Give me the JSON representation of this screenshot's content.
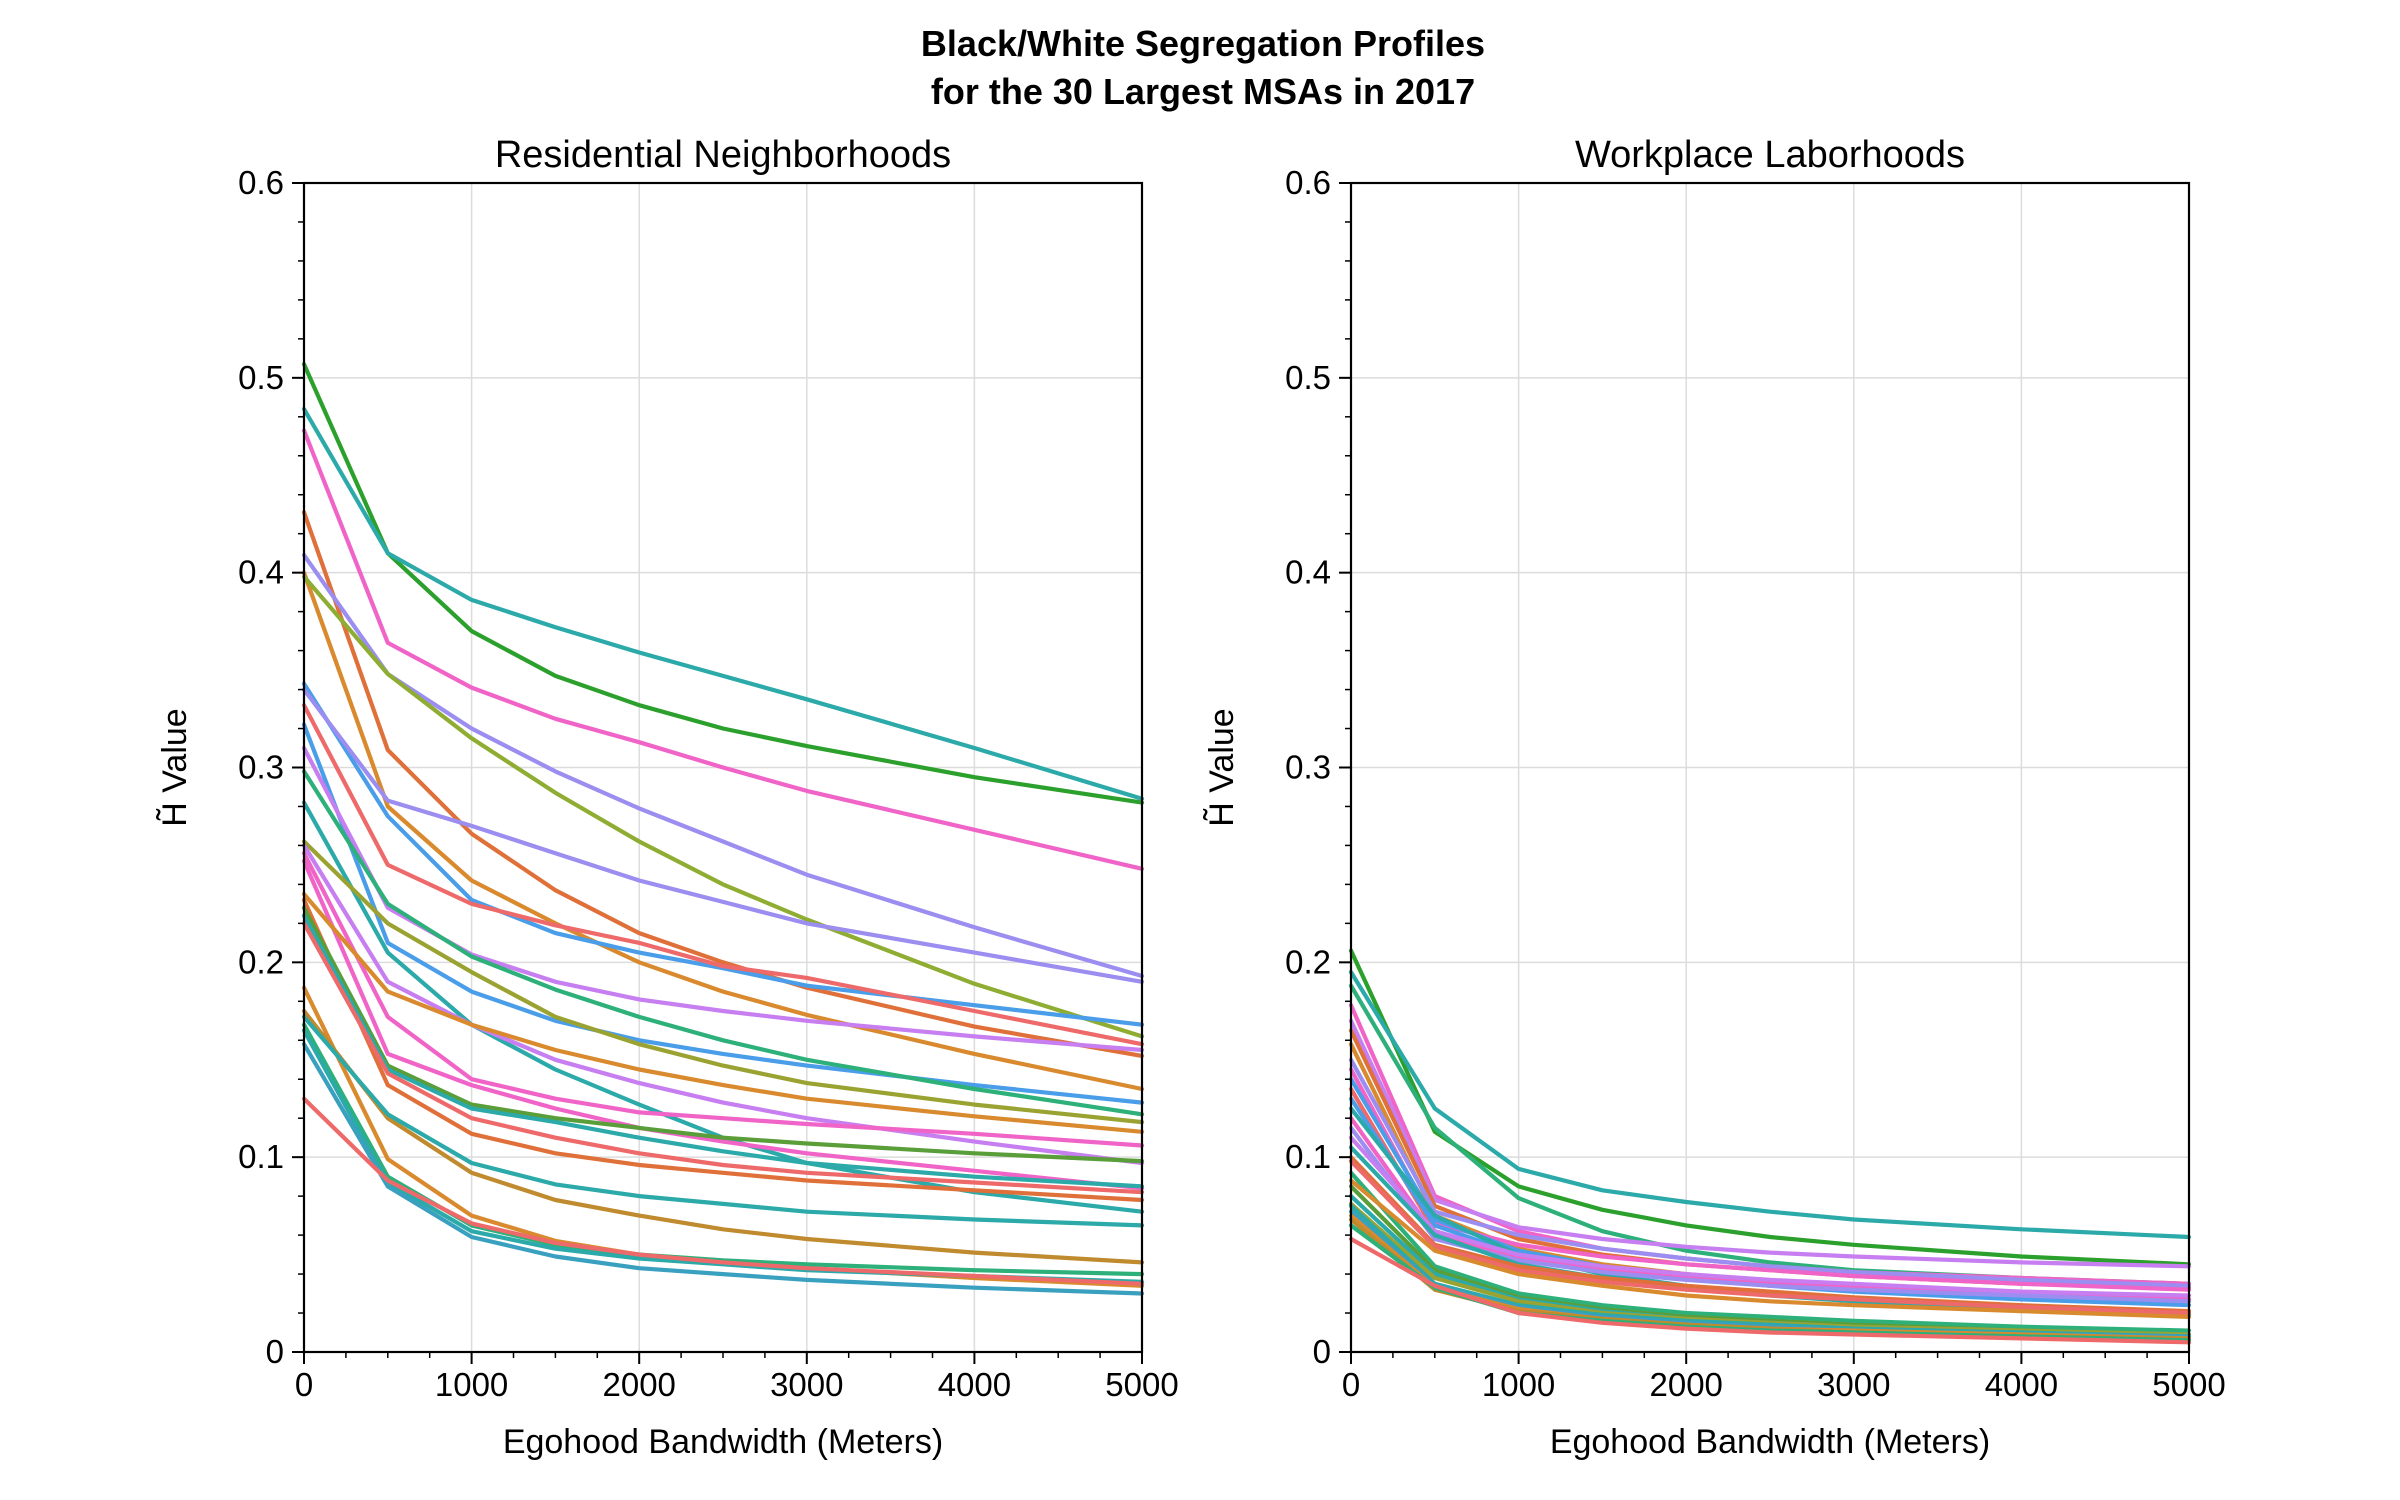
{
  "figure": {
    "title_line1": "Black/White Segregation Profiles",
    "title_line2": "for the 30 Largest MSAs in 2017"
  },
  "chart_data": [
    {
      "type": "line",
      "title": "Residential Neighborhoods",
      "xlabel": "Egohood Bandwidth (Meters)",
      "ylabel": "H̃ Value",
      "xlim": [
        0,
        5000
      ],
      "ylim": [
        0,
        0.6
      ],
      "xticks": [
        0,
        1000,
        2000,
        3000,
        4000,
        5000
      ],
      "yticks": [
        0,
        0.1,
        0.2,
        0.3,
        0.4,
        0.5,
        0.6
      ],
      "xtick_labels": [
        "0",
        "1000",
        "2000",
        "3000",
        "4000",
        "5000"
      ],
      "ytick_labels": [
        "0",
        "0.1",
        "0.2",
        "0.3",
        "0.4",
        "0.5",
        "0.6"
      ],
      "grid": true,
      "legend": "none",
      "x": [
        0,
        500,
        1000,
        1500,
        2000,
        2500,
        3000,
        4000,
        5000
      ],
      "series": [
        {
          "color": "#2ca02c",
          "values": [
            0.507,
            0.41,
            0.37,
            0.347,
            0.332,
            0.32,
            0.311,
            0.295,
            0.282
          ]
        },
        {
          "color": "#2ca9a9",
          "values": [
            0.484,
            0.41,
            0.386,
            0.372,
            0.359,
            0.347,
            0.335,
            0.31,
            0.284
          ]
        },
        {
          "color": "#f064c8",
          "values": [
            0.473,
            0.364,
            0.341,
            0.325,
            0.313,
            0.3,
            0.288,
            0.268,
            0.248
          ]
        },
        {
          "color": "#e0703a",
          "values": [
            0.431,
            0.309,
            0.266,
            0.237,
            0.215,
            0.2,
            0.187,
            0.167,
            0.152
          ]
        },
        {
          "color": "#d98a2e",
          "values": [
            0.4,
            0.28,
            0.242,
            0.22,
            0.2,
            0.185,
            0.173,
            0.153,
            0.135
          ]
        },
        {
          "color": "#9b8ef0",
          "values": [
            0.409,
            0.348,
            0.32,
            0.298,
            0.279,
            0.262,
            0.245,
            0.218,
            0.193
          ]
        },
        {
          "color": "#8fad32",
          "values": [
            0.398,
            0.348,
            0.315,
            0.287,
            0.262,
            0.24,
            0.222,
            0.189,
            0.162
          ]
        },
        {
          "color": "#4a9de8",
          "values": [
            0.343,
            0.275,
            0.232,
            0.215,
            0.205,
            0.197,
            0.188,
            0.178,
            0.168
          ]
        },
        {
          "color": "#9b8ef0",
          "values": [
            0.34,
            0.283,
            0.27,
            0.256,
            0.242,
            0.231,
            0.22,
            0.205,
            0.19
          ]
        },
        {
          "color": "#ee6a6a",
          "values": [
            0.332,
            0.25,
            0.23,
            0.219,
            0.21,
            0.198,
            0.192,
            0.175,
            0.158
          ]
        },
        {
          "color": "#4a9de8",
          "values": [
            0.322,
            0.21,
            0.185,
            0.17,
            0.16,
            0.153,
            0.147,
            0.137,
            0.128
          ]
        },
        {
          "color": "#c77ef0",
          "values": [
            0.31,
            0.228,
            0.204,
            0.19,
            0.181,
            0.175,
            0.17,
            0.162,
            0.155
          ]
        },
        {
          "color": "#2db07a",
          "values": [
            0.298,
            0.23,
            0.203,
            0.186,
            0.172,
            0.16,
            0.15,
            0.135,
            0.122
          ]
        },
        {
          "color": "#2ca9a9",
          "values": [
            0.282,
            0.205,
            0.168,
            0.145,
            0.127,
            0.11,
            0.097,
            0.082,
            0.072
          ]
        },
        {
          "color": "#9aa332",
          "values": [
            0.262,
            0.22,
            0.195,
            0.172,
            0.158,
            0.147,
            0.138,
            0.127,
            0.118
          ]
        },
        {
          "color": "#c77ef0",
          "values": [
            0.26,
            0.19,
            0.168,
            0.15,
            0.138,
            0.128,
            0.12,
            0.108,
            0.097
          ]
        },
        {
          "color": "#f064c8",
          "values": [
            0.256,
            0.172,
            0.14,
            0.13,
            0.123,
            0.12,
            0.117,
            0.112,
            0.106
          ]
        },
        {
          "color": "#f064c8",
          "values": [
            0.252,
            0.153,
            0.137,
            0.125,
            0.115,
            0.108,
            0.102,
            0.093,
            0.084
          ]
        },
        {
          "color": "#d98a2e",
          "values": [
            0.235,
            0.185,
            0.168,
            0.155,
            0.145,
            0.137,
            0.13,
            0.121,
            0.113
          ]
        },
        {
          "color": "#e0703a",
          "values": [
            0.232,
            0.137,
            0.112,
            0.102,
            0.096,
            0.092,
            0.088,
            0.083,
            0.078
          ]
        },
        {
          "color": "#5a9e3a",
          "values": [
            0.228,
            0.147,
            0.127,
            0.12,
            0.115,
            0.11,
            0.107,
            0.102,
            0.098
          ]
        },
        {
          "color": "#2ca9a9",
          "values": [
            0.224,
            0.145,
            0.125,
            0.118,
            0.11,
            0.103,
            0.097,
            0.09,
            0.085
          ]
        },
        {
          "color": "#ee6a6a",
          "values": [
            0.22,
            0.143,
            0.12,
            0.11,
            0.102,
            0.096,
            0.092,
            0.087,
            0.082
          ]
        },
        {
          "color": "#d98a2e",
          "values": [
            0.187,
            0.099,
            0.07,
            0.057,
            0.05,
            0.046,
            0.043,
            0.038,
            0.034
          ]
        },
        {
          "color": "#c08a2e",
          "values": [
            0.175,
            0.12,
            0.092,
            0.078,
            0.07,
            0.063,
            0.058,
            0.051,
            0.046
          ]
        },
        {
          "color": "#2ca9a9",
          "values": [
            0.172,
            0.122,
            0.097,
            0.086,
            0.08,
            0.076,
            0.072,
            0.068,
            0.065
          ]
        },
        {
          "color": "#2db07a",
          "values": [
            0.168,
            0.09,
            0.065,
            0.055,
            0.05,
            0.047,
            0.045,
            0.042,
            0.04
          ]
        },
        {
          "color": "#2ca9a9",
          "values": [
            0.165,
            0.087,
            0.062,
            0.053,
            0.048,
            0.045,
            0.042,
            0.039,
            0.036
          ]
        },
        {
          "color": "#3aa0c0",
          "values": [
            0.158,
            0.085,
            0.059,
            0.049,
            0.043,
            0.04,
            0.037,
            0.033,
            0.03
          ]
        },
        {
          "color": "#ee6a6a",
          "values": [
            0.13,
            0.088,
            0.066,
            0.056,
            0.05,
            0.046,
            0.043,
            0.039,
            0.035
          ]
        }
      ]
    },
    {
      "type": "line",
      "title": "Workplace Laborhoods",
      "xlabel": "Egohood Bandwidth (Meters)",
      "ylabel": "H̃ Value",
      "xlim": [
        0,
        5000
      ],
      "ylim": [
        0,
        0.6
      ],
      "xticks": [
        0,
        1000,
        2000,
        3000,
        4000,
        5000
      ],
      "yticks": [
        0,
        0.1,
        0.2,
        0.3,
        0.4,
        0.5,
        0.6
      ],
      "xtick_labels": [
        "0",
        "1000",
        "2000",
        "3000",
        "4000",
        "5000"
      ],
      "ytick_labels": [
        "0",
        "0.1",
        "0.2",
        "0.3",
        "0.4",
        "0.5",
        "0.6"
      ],
      "grid": true,
      "legend": "none",
      "x": [
        0,
        500,
        1000,
        1500,
        2000,
        2500,
        3000,
        4000,
        5000
      ],
      "series": [
        {
          "color": "#2ca02c",
          "values": [
            0.206,
            0.113,
            0.085,
            0.073,
            0.065,
            0.059,
            0.055,
            0.049,
            0.045
          ]
        },
        {
          "color": "#2ca9a9",
          "values": [
            0.195,
            0.125,
            0.094,
            0.083,
            0.077,
            0.072,
            0.068,
            0.063,
            0.059
          ]
        },
        {
          "color": "#2db07a",
          "values": [
            0.188,
            0.115,
            0.079,
            0.062,
            0.052,
            0.046,
            0.042,
            0.038,
            0.035
          ]
        },
        {
          "color": "#f064c8",
          "values": [
            0.178,
            0.08,
            0.062,
            0.053,
            0.048,
            0.044,
            0.041,
            0.038,
            0.035
          ]
        },
        {
          "color": "#c77ef0",
          "values": [
            0.17,
            0.078,
            0.064,
            0.058,
            0.054,
            0.051,
            0.049,
            0.046,
            0.044
          ]
        },
        {
          "color": "#e0703a",
          "values": [
            0.165,
            0.075,
            0.058,
            0.05,
            0.045,
            0.042,
            0.039,
            0.035,
            0.033
          ]
        },
        {
          "color": "#d98a2e",
          "values": [
            0.158,
            0.07,
            0.053,
            0.045,
            0.04,
            0.036,
            0.034,
            0.03,
            0.027
          ]
        },
        {
          "color": "#9b8ef0",
          "values": [
            0.15,
            0.072,
            0.06,
            0.053,
            0.048,
            0.044,
            0.041,
            0.037,
            0.034
          ]
        },
        {
          "color": "#f064c8",
          "values": [
            0.145,
            0.066,
            0.055,
            0.049,
            0.045,
            0.042,
            0.039,
            0.035,
            0.032
          ]
        },
        {
          "color": "#4a9de8",
          "values": [
            0.14,
            0.068,
            0.052,
            0.044,
            0.039,
            0.036,
            0.033,
            0.03,
            0.027
          ]
        },
        {
          "color": "#ee6a6a",
          "values": [
            0.135,
            0.062,
            0.049,
            0.042,
            0.038,
            0.035,
            0.033,
            0.029,
            0.026
          ]
        },
        {
          "color": "#4a9de8",
          "values": [
            0.13,
            0.065,
            0.05,
            0.043,
            0.038,
            0.034,
            0.031,
            0.027,
            0.024
          ]
        },
        {
          "color": "#2ca9a9",
          "values": [
            0.125,
            0.07,
            0.05,
            0.04,
            0.034,
            0.03,
            0.027,
            0.022,
            0.019
          ]
        },
        {
          "color": "#f064c8",
          "values": [
            0.12,
            0.06,
            0.048,
            0.042,
            0.038,
            0.035,
            0.033,
            0.03,
            0.027
          ]
        },
        {
          "color": "#9b8ef0",
          "values": [
            0.115,
            0.058,
            0.047,
            0.041,
            0.037,
            0.034,
            0.032,
            0.029,
            0.026
          ]
        },
        {
          "color": "#c77ef0",
          "values": [
            0.11,
            0.062,
            0.05,
            0.044,
            0.04,
            0.037,
            0.035,
            0.031,
            0.029
          ]
        },
        {
          "color": "#2ca9a9",
          "values": [
            0.105,
            0.06,
            0.045,
            0.038,
            0.033,
            0.029,
            0.026,
            0.022,
            0.019
          ]
        },
        {
          "color": "#e0703a",
          "values": [
            0.1,
            0.055,
            0.044,
            0.038,
            0.034,
            0.031,
            0.028,
            0.024,
            0.021
          ]
        },
        {
          "color": "#ee6a6a",
          "values": [
            0.098,
            0.054,
            0.042,
            0.036,
            0.032,
            0.029,
            0.027,
            0.023,
            0.02
          ]
        },
        {
          "color": "#2db07a",
          "values": [
            0.092,
            0.044,
            0.03,
            0.024,
            0.02,
            0.018,
            0.016,
            0.013,
            0.011
          ]
        },
        {
          "color": "#d98a2e",
          "values": [
            0.088,
            0.052,
            0.04,
            0.034,
            0.029,
            0.026,
            0.024,
            0.021,
            0.018
          ]
        },
        {
          "color": "#5a9e3a",
          "values": [
            0.085,
            0.042,
            0.028,
            0.022,
            0.018,
            0.016,
            0.014,
            0.011,
            0.009
          ]
        },
        {
          "color": "#2ca9a9",
          "values": [
            0.08,
            0.04,
            0.027,
            0.021,
            0.017,
            0.015,
            0.013,
            0.011,
            0.009
          ]
        },
        {
          "color": "#9aa332",
          "values": [
            0.076,
            0.038,
            0.026,
            0.02,
            0.017,
            0.015,
            0.013,
            0.011,
            0.009
          ]
        },
        {
          "color": "#2ca9a9",
          "values": [
            0.075,
            0.035,
            0.024,
            0.019,
            0.016,
            0.014,
            0.012,
            0.01,
            0.008
          ]
        },
        {
          "color": "#3aa0c0",
          "values": [
            0.072,
            0.034,
            0.023,
            0.018,
            0.015,
            0.013,
            0.011,
            0.009,
            0.008
          ]
        },
        {
          "color": "#d98a2e",
          "values": [
            0.07,
            0.033,
            0.022,
            0.017,
            0.014,
            0.012,
            0.011,
            0.009,
            0.007
          ]
        },
        {
          "color": "#c08a2e",
          "values": [
            0.068,
            0.032,
            0.021,
            0.017,
            0.014,
            0.012,
            0.01,
            0.008,
            0.007
          ]
        },
        {
          "color": "#2db07a",
          "values": [
            0.065,
            0.033,
            0.02,
            0.016,
            0.013,
            0.011,
            0.01,
            0.008,
            0.006
          ]
        },
        {
          "color": "#ee6a6a",
          "values": [
            0.058,
            0.034,
            0.02,
            0.015,
            0.012,
            0.01,
            0.009,
            0.007,
            0.005
          ]
        }
      ]
    }
  ]
}
